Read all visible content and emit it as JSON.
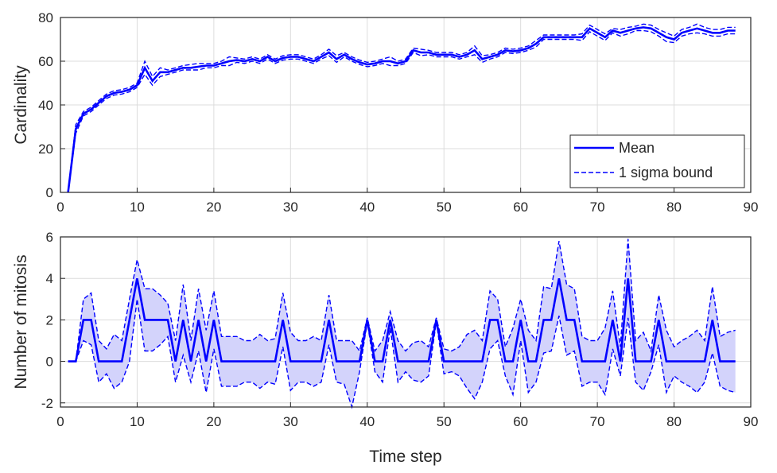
{
  "chart_data": [
    {
      "type": "line",
      "xlabel": "",
      "ylabel": "Cardinality",
      "xlim": [
        0,
        90
      ],
      "ylim": [
        0,
        80
      ],
      "xticks": [
        0,
        10,
        20,
        30,
        40,
        50,
        60,
        70,
        80,
        90
      ],
      "yticks": [
        0,
        20,
        40,
        60,
        80
      ],
      "grid": true,
      "legend_position": "bottom-right",
      "legend": [
        "Mean",
        "1 sigma bound"
      ],
      "x": [
        1,
        2,
        3,
        4,
        5,
        6,
        7,
        8,
        9,
        10,
        11,
        12,
        13,
        14,
        15,
        16,
        17,
        18,
        19,
        20,
        21,
        22,
        23,
        24,
        25,
        26,
        27,
        28,
        29,
        30,
        31,
        32,
        33,
        34,
        35,
        36,
        37,
        38,
        39,
        40,
        41,
        42,
        43,
        44,
        45,
        46,
        47,
        48,
        49,
        50,
        51,
        52,
        53,
        54,
        55,
        56,
        57,
        58,
        59,
        60,
        61,
        62,
        63,
        64,
        65,
        66,
        67,
        68,
        69,
        70,
        71,
        72,
        73,
        74,
        75,
        76,
        77,
        78,
        79,
        80,
        81,
        82,
        83,
        84,
        85,
        86,
        87,
        88
      ],
      "series": [
        {
          "name": "Mean",
          "style": "solid",
          "color": "#0000ff",
          "values": [
            0,
            29,
            36,
            38,
            41,
            44,
            45.5,
            46,
            47,
            49,
            57,
            51,
            55,
            55,
            56,
            57,
            57,
            57.5,
            58,
            58,
            59,
            60,
            60.5,
            60,
            61,
            60,
            62,
            60,
            61.5,
            62,
            62,
            61,
            60,
            62,
            64,
            61,
            63,
            61,
            59.5,
            58.5,
            59,
            60,
            60,
            59,
            60,
            65,
            64,
            64,
            63,
            63,
            63,
            62,
            63,
            65,
            61,
            62,
            63,
            65,
            64.5,
            65,
            66,
            68,
            71,
            71,
            71,
            71,
            71,
            71,
            75,
            73,
            71,
            74,
            73,
            74,
            75,
            75.5,
            75,
            73,
            71,
            70,
            73,
            74,
            75,
            74,
            73,
            73,
            74,
            74
          ]
        },
        {
          "name": "1 sigma bound",
          "style": "dashed",
          "color": "#0000ff",
          "upper": [
            0.5,
            31,
            37,
            39,
            42,
            45,
            46.5,
            47,
            48,
            50,
            60,
            53,
            57,
            56,
            57,
            58,
            58.5,
            59,
            59,
            59,
            60,
            62,
            61.5,
            61,
            62,
            61,
            63,
            61,
            62.5,
            63,
            63,
            62,
            61,
            63,
            65.5,
            62.5,
            64,
            62,
            60.5,
            59.5,
            60,
            61,
            62,
            60,
            61,
            66,
            65.5,
            65,
            64,
            64,
            64,
            63,
            64,
            67,
            62.5,
            63,
            64,
            66,
            65.5,
            66,
            67,
            69.5,
            72,
            72,
            72,
            72,
            72,
            72.5,
            76.5,
            74.5,
            72.5,
            75,
            74.5,
            75.5,
            76,
            77,
            76.5,
            74.5,
            73,
            71.5,
            74.5,
            75.5,
            77,
            75.5,
            74.5,
            74.5,
            75.5,
            75.5
          ],
          "lower": [
            -0.5,
            27,
            35,
            37,
            40,
            43,
            44.5,
            45,
            46,
            48,
            54,
            49,
            53,
            54,
            55,
            56,
            56,
            56,
            57,
            57,
            58,
            58,
            59.5,
            59,
            60,
            59,
            61,
            59,
            60.5,
            61,
            61,
            60,
            59,
            61,
            62.5,
            59.5,
            62,
            60,
            58.5,
            57.5,
            58,
            59,
            58,
            58,
            59,
            64,
            62.5,
            63,
            62,
            62,
            62,
            61,
            62,
            63,
            59.5,
            61,
            62,
            64,
            63.5,
            64,
            65,
            66.5,
            70,
            70,
            70,
            70,
            70,
            69.5,
            73.5,
            71.5,
            69.5,
            73,
            71.5,
            72.5,
            74,
            74,
            73.5,
            71.5,
            69,
            68.5,
            71.5,
            72.5,
            73,
            72.5,
            71.5,
            71.5,
            72.5,
            72.5
          ]
        }
      ]
    },
    {
      "type": "line",
      "xlabel": "Time step",
      "ylabel": "Number of mitosis",
      "xlim": [
        0,
        90
      ],
      "ylim": [
        -2.2,
        6
      ],
      "xticks": [
        0,
        10,
        20,
        30,
        40,
        50,
        60,
        70,
        80,
        90
      ],
      "yticks": [
        -2,
        0,
        2,
        4,
        6
      ],
      "grid": true,
      "x": [
        1,
        2,
        3,
        4,
        5,
        6,
        7,
        8,
        9,
        10,
        11,
        12,
        13,
        14,
        15,
        16,
        17,
        18,
        19,
        20,
        21,
        22,
        23,
        24,
        25,
        26,
        27,
        28,
        29,
        30,
        31,
        32,
        33,
        34,
        35,
        36,
        37,
        38,
        39,
        40,
        41,
        42,
        43,
        44,
        45,
        46,
        47,
        48,
        49,
        50,
        51,
        52,
        53,
        54,
        55,
        56,
        57,
        58,
        59,
        60,
        61,
        62,
        63,
        64,
        65,
        66,
        67,
        68,
        69,
        70,
        71,
        72,
        73,
        74,
        75,
        76,
        77,
        78,
        79,
        80,
        81,
        82,
        83,
        84,
        85,
        86,
        87,
        88
      ],
      "series": [
        {
          "name": "Mean",
          "style": "solid",
          "color": "#0000ff",
          "values": [
            0,
            0,
            2,
            2,
            0,
            0,
            0,
            0,
            2,
            4,
            2,
            2,
            2,
            2,
            0,
            2,
            0,
            2,
            0,
            2,
            0,
            0,
            0,
            0,
            0,
            0,
            0,
            0,
            2,
            0,
            0,
            0,
            0,
            0,
            2,
            0,
            0,
            0,
            0,
            2,
            0,
            0,
            2,
            0,
            0,
            0,
            0,
            0,
            2,
            0,
            0,
            0,
            0,
            0,
            0,
            2,
            2,
            0,
            0,
            2,
            0,
            0,
            2,
            2,
            4,
            2,
            2,
            0,
            0,
            0,
            0,
            2,
            0,
            4,
            0,
            0,
            0,
            2,
            0,
            0,
            0,
            0,
            0,
            0,
            2,
            0,
            0,
            0
          ]
        },
        {
          "name": "1 sigma bound",
          "style": "dashed",
          "color": "#0000ff",
          "fill": "#d3d3fb",
          "upper": [
            0,
            0,
            3,
            3.3,
            1,
            0.6,
            1.3,
            1,
            3,
            4.9,
            3.5,
            3.5,
            3.2,
            2.8,
            1,
            3.7,
            1,
            3.5,
            1.5,
            3.4,
            1.2,
            1.2,
            1.2,
            1,
            1,
            1.3,
            1,
            1.1,
            3.3,
            1.4,
            1,
            1,
            1.2,
            1,
            3.2,
            1,
            1,
            1,
            0.5,
            2.1,
            0.5,
            1,
            2.4,
            1,
            0.5,
            0.9,
            1,
            0.7,
            2.1,
            0.6,
            0.5,
            0.7,
            1.3,
            1.5,
            1,
            3.4,
            3,
            0.7,
            1.6,
            3,
            1.5,
            1,
            3.6,
            3.5,
            5.8,
            3.7,
            3.5,
            1.2,
            1,
            1,
            1.6,
            3.4,
            0.7,
            5.9,
            1,
            1.4,
            0.5,
            3.2,
            1.5,
            0.7,
            1,
            1.2,
            1.5,
            1,
            3.6,
            1.2,
            1.4,
            1.5
          ],
          "lower": [
            0,
            0,
            1,
            0.8,
            -1,
            -0.6,
            -1.3,
            -1,
            0,
            3,
            0.5,
            0.5,
            0.8,
            1.2,
            -1,
            0.3,
            -1,
            0.5,
            -1.5,
            0.6,
            -1.2,
            -1.2,
            -1.2,
            -1,
            -1,
            -1.3,
            -1,
            -1.1,
            0.7,
            -1.4,
            -1,
            -1,
            -1.2,
            -1,
            0.8,
            -1,
            -1.1,
            -2.2,
            -0.5,
            1.9,
            -0.5,
            -1,
            1.6,
            -1,
            -0.5,
            -0.9,
            -1,
            -0.7,
            1.9,
            -0.6,
            -0.5,
            -0.7,
            -1.3,
            -1.8,
            -1,
            0.6,
            1,
            -0.7,
            -1.6,
            1,
            -1.5,
            -1,
            0.4,
            0.5,
            2.2,
            0.3,
            0.5,
            -1.2,
            -1,
            -1,
            -1.6,
            0.6,
            -0.7,
            2.1,
            -1,
            -1.4,
            -0.5,
            0.8,
            -1.5,
            -0.7,
            -1,
            -1.2,
            -1.5,
            -1,
            0.4,
            -1.2,
            -1.4,
            -1.5
          ]
        }
      ]
    }
  ]
}
